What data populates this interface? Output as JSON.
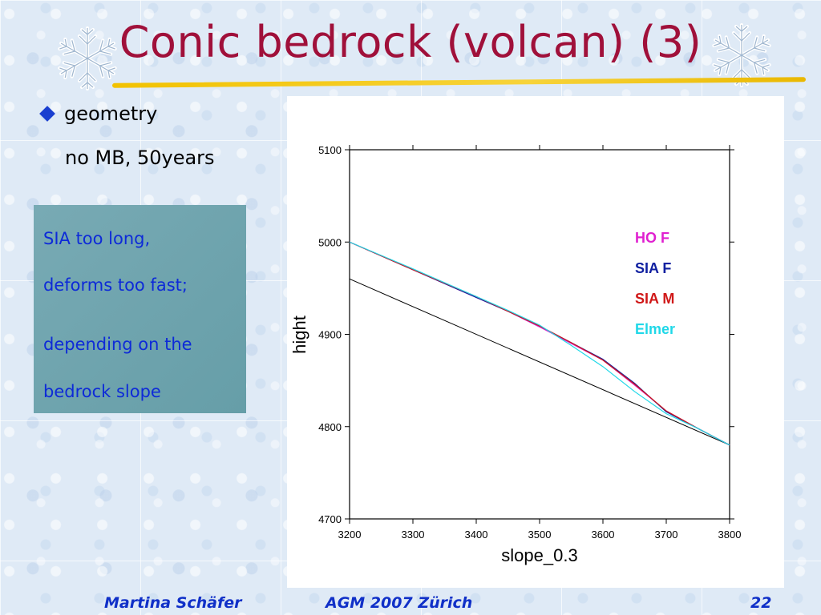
{
  "slide": {
    "title": "Conic bedrock (volcan) (3)",
    "bullet": "geometry",
    "subtext": "no MB, 50years",
    "note_lines": [
      "SIA too long,",
      "deforms too fast;",
      "depending on the",
      "bedrock slope"
    ],
    "footer": {
      "author": "Martina Schäfer",
      "event": "AGM 2007 Zürich",
      "page": "22"
    },
    "colors": {
      "title": "#a0103a",
      "accent": "#f2c200",
      "bullet": "#1a3fd0",
      "note_text": "#0d2ad8",
      "note_bg": "#6fa4ad"
    },
    "icons": [
      "snowflake-icon",
      "diamond-bullet-icon"
    ]
  },
  "chart_data": {
    "type": "line",
    "title": "",
    "xlabel": "slope_0.3",
    "ylabel": "hight",
    "xlim": [
      3200,
      3800
    ],
    "ylim": [
      4700,
      5100
    ],
    "xticks": [
      3200,
      3300,
      3400,
      3500,
      3600,
      3700,
      3800
    ],
    "yticks": [
      4700,
      4800,
      4900,
      5000,
      5100
    ],
    "grid": false,
    "legend_position": "top-right",
    "bedrock": {
      "x": [
        3200,
        3800
      ],
      "y": [
        4960,
        4780
      ],
      "color": "#000000"
    },
    "series": [
      {
        "name": "HO F",
        "color": "#e020d0",
        "x": [
          3200,
          3300,
          3400,
          3450,
          3500,
          3550,
          3600,
          3650,
          3700,
          3750,
          3800
        ],
        "y": [
          5000,
          4970,
          4940,
          4925,
          4908,
          4890,
          4872,
          4845,
          4817,
          4798,
          4780
        ]
      },
      {
        "name": "SIA F",
        "color": "#1020a0",
        "x": [
          3200,
          3300,
          3400,
          3450,
          3500,
          3550,
          3600,
          3650,
          3700,
          3750,
          3800
        ],
        "y": [
          5000,
          4970,
          4940,
          4925,
          4909,
          4891,
          4873,
          4847,
          4816,
          4798,
          4780
        ]
      },
      {
        "name": "SIA M",
        "color": "#d01818",
        "x": [
          3200,
          3300,
          3400,
          3450,
          3500,
          3550,
          3600,
          3650,
          3700,
          3750,
          3800
        ],
        "y": [
          5000,
          4970,
          4941,
          4925,
          4909,
          4891,
          4872,
          4846,
          4817,
          4798,
          4780
        ]
      },
      {
        "name": "Elmer",
        "color": "#20d8e8",
        "x": [
          3200,
          3300,
          3400,
          3450,
          3500,
          3550,
          3600,
          3650,
          3700,
          3750,
          3800
        ],
        "y": [
          5000,
          4971,
          4941,
          4926,
          4910,
          4888,
          4865,
          4838,
          4814,
          4798,
          4780
        ]
      }
    ]
  }
}
